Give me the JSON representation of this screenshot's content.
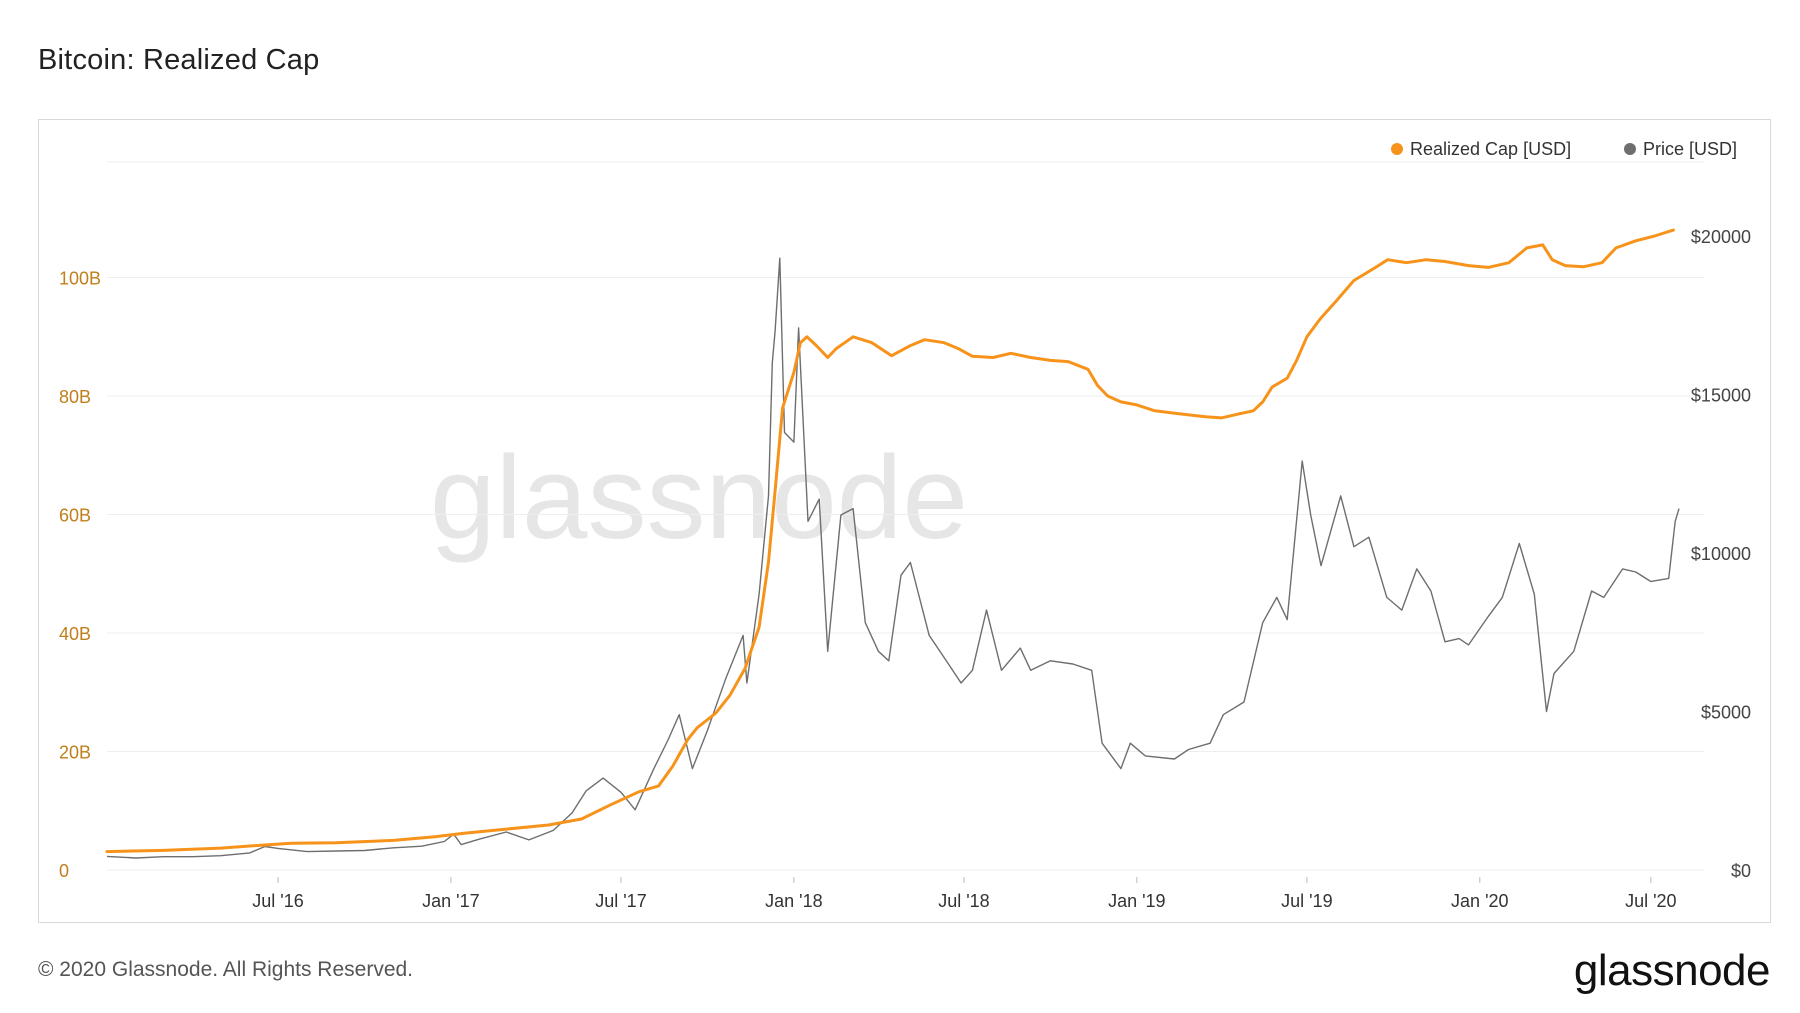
{
  "title": "Bitcoin: Realized Cap",
  "footer": {
    "copyright": "© 2020 Glassnode. All Rights Reserved.",
    "logo": "glassnode"
  },
  "watermark": "glassnode",
  "colors": {
    "realized_cap": "#f7931a",
    "price": "#6e6e6e",
    "left_axis_text": "#c07f1b",
    "grid": "#eeeeee"
  },
  "chart_data": {
    "type": "line",
    "title": "Bitcoin: Realized Cap",
    "legend": {
      "placement": "top-right",
      "entries": [
        "Realized Cap [USD]",
        "Price [USD]"
      ]
    },
    "grid": true,
    "x_range": [
      "2016-01-01",
      "2020-07-31"
    ],
    "x_ticks": [
      {
        "date": "2016-07-01",
        "label": "Jul '16"
      },
      {
        "date": "2017-01-01",
        "label": "Jan '17"
      },
      {
        "date": "2017-07-01",
        "label": "Jul '17"
      },
      {
        "date": "2018-01-01",
        "label": "Jan '18"
      },
      {
        "date": "2018-07-01",
        "label": "Jul '18"
      },
      {
        "date": "2019-01-01",
        "label": "Jan '19"
      },
      {
        "date": "2019-07-01",
        "label": "Jul '19"
      },
      {
        "date": "2020-01-01",
        "label": "Jan '20"
      },
      {
        "date": "2020-07-01",
        "label": "Jul '20"
      }
    ],
    "y_left": {
      "range": [
        0,
        120
      ],
      "ticks": [
        {
          "value": 0,
          "label": "0"
        },
        {
          "value": 20,
          "label": "20B"
        },
        {
          "value": 40,
          "label": "40B"
        },
        {
          "value": 60,
          "label": "60B"
        },
        {
          "value": 80,
          "label": "80B"
        },
        {
          "value": 100,
          "label": "100B"
        }
      ]
    },
    "y_right": {
      "range": [
        0,
        22000
      ],
      "ticks": [
        {
          "value": 0,
          "label": "$0"
        },
        {
          "value": 5000,
          "label": "$5000"
        },
        {
          "value": 10000,
          "label": "$10000"
        },
        {
          "value": 15000,
          "label": "$15000"
        },
        {
          "value": 20000,
          "label": "$20000"
        }
      ]
    },
    "series": [
      {
        "name": "Realized Cap [USD]",
        "axis": "left",
        "points": [
          [
            "2016-01-01",
            3.1
          ],
          [
            "2016-03-01",
            3.3
          ],
          [
            "2016-05-01",
            3.7
          ],
          [
            "2016-06-15",
            4.2
          ],
          [
            "2016-07-15",
            4.5
          ],
          [
            "2016-09-01",
            4.6
          ],
          [
            "2016-11-01",
            5.0
          ],
          [
            "2016-12-15",
            5.6
          ],
          [
            "2017-01-15",
            6.2
          ],
          [
            "2017-03-01",
            6.9
          ],
          [
            "2017-04-15",
            7.6
          ],
          [
            "2017-05-20",
            8.6
          ],
          [
            "2017-06-20",
            11.0
          ],
          [
            "2017-07-20",
            13.2
          ],
          [
            "2017-08-10",
            14.2
          ],
          [
            "2017-08-25",
            17.5
          ],
          [
            "2017-09-10",
            22.0
          ],
          [
            "2017-09-20",
            24.0
          ],
          [
            "2017-10-10",
            26.5
          ],
          [
            "2017-10-25",
            29.5
          ],
          [
            "2017-11-10",
            34.0
          ],
          [
            "2017-11-25",
            41.0
          ],
          [
            "2017-12-05",
            52.0
          ],
          [
            "2017-12-12",
            64.0
          ],
          [
            "2017-12-20",
            78.0
          ],
          [
            "2018-01-01",
            84.0
          ],
          [
            "2018-01-08",
            89.0
          ],
          [
            "2018-01-15",
            90.0
          ],
          [
            "2018-01-25",
            88.5
          ],
          [
            "2018-02-06",
            86.5
          ],
          [
            "2018-02-15",
            88.0
          ],
          [
            "2018-03-05",
            90.0
          ],
          [
            "2018-03-25",
            89.0
          ],
          [
            "2018-04-15",
            86.8
          ],
          [
            "2018-05-05",
            88.5
          ],
          [
            "2018-05-20",
            89.5
          ],
          [
            "2018-06-10",
            89.0
          ],
          [
            "2018-06-25",
            88.0
          ],
          [
            "2018-07-10",
            86.7
          ],
          [
            "2018-08-01",
            86.5
          ],
          [
            "2018-08-20",
            87.2
          ],
          [
            "2018-09-10",
            86.5
          ],
          [
            "2018-10-01",
            86.0
          ],
          [
            "2018-10-20",
            85.8
          ],
          [
            "2018-11-10",
            84.5
          ],
          [
            "2018-11-20",
            81.8
          ],
          [
            "2018-12-01",
            80.0
          ],
          [
            "2018-12-15",
            79.0
          ],
          [
            "2019-01-01",
            78.5
          ],
          [
            "2019-01-20",
            77.5
          ],
          [
            "2019-02-15",
            77.0
          ],
          [
            "2019-03-15",
            76.5
          ],
          [
            "2019-04-01",
            76.3
          ],
          [
            "2019-04-20",
            77.0
          ],
          [
            "2019-05-05",
            77.5
          ],
          [
            "2019-05-15",
            79.0
          ],
          [
            "2019-05-25",
            81.5
          ],
          [
            "2019-06-10",
            83.0
          ],
          [
            "2019-06-20",
            86.0
          ],
          [
            "2019-07-01",
            90.0
          ],
          [
            "2019-07-15",
            93.0
          ],
          [
            "2019-08-01",
            96.0
          ],
          [
            "2019-08-20",
            99.5
          ],
          [
            "2019-09-10",
            101.5
          ],
          [
            "2019-09-25",
            103.0
          ],
          [
            "2019-10-15",
            102.5
          ],
          [
            "2019-11-05",
            103.0
          ],
          [
            "2019-11-25",
            102.7
          ],
          [
            "2019-12-20",
            102.0
          ],
          [
            "2020-01-10",
            101.7
          ],
          [
            "2020-02-01",
            102.5
          ],
          [
            "2020-02-20",
            105.0
          ],
          [
            "2020-03-08",
            105.5
          ],
          [
            "2020-03-18",
            103.0
          ],
          [
            "2020-04-01",
            102.0
          ],
          [
            "2020-04-20",
            101.8
          ],
          [
            "2020-05-10",
            102.5
          ],
          [
            "2020-05-25",
            105.0
          ],
          [
            "2020-06-15",
            106.2
          ],
          [
            "2020-07-05",
            107.0
          ],
          [
            "2020-07-25",
            108.0
          ]
        ]
      },
      {
        "name": "Price [USD]",
        "axis": "right",
        "points": [
          [
            "2016-01-01",
            430
          ],
          [
            "2016-02-01",
            380
          ],
          [
            "2016-03-01",
            420
          ],
          [
            "2016-04-01",
            420
          ],
          [
            "2016-05-01",
            450
          ],
          [
            "2016-06-01",
            540
          ],
          [
            "2016-06-17",
            740
          ],
          [
            "2016-07-01",
            680
          ],
          [
            "2016-08-01",
            580
          ],
          [
            "2016-09-01",
            600
          ],
          [
            "2016-10-01",
            615
          ],
          [
            "2016-11-01",
            700
          ],
          [
            "2016-12-01",
            750
          ],
          [
            "2016-12-25",
            900
          ],
          [
            "2017-01-04",
            1130
          ],
          [
            "2017-01-12",
            800
          ],
          [
            "2017-02-01",
            980
          ],
          [
            "2017-03-01",
            1200
          ],
          [
            "2017-03-25",
            950
          ],
          [
            "2017-04-20",
            1250
          ],
          [
            "2017-05-10",
            1800
          ],
          [
            "2017-05-25",
            2500
          ],
          [
            "2017-06-12",
            2900
          ],
          [
            "2017-07-01",
            2450
          ],
          [
            "2017-07-16",
            1900
          ],
          [
            "2017-08-05",
            3200
          ],
          [
            "2017-08-20",
            4100
          ],
          [
            "2017-09-01",
            4900
          ],
          [
            "2017-09-15",
            3200
          ],
          [
            "2017-10-01",
            4400
          ],
          [
            "2017-10-20",
            6000
          ],
          [
            "2017-11-08",
            7400
          ],
          [
            "2017-11-12",
            5900
          ],
          [
            "2017-11-25",
            8700
          ],
          [
            "2017-12-05",
            11800
          ],
          [
            "2017-12-09",
            16000
          ],
          [
            "2017-12-12",
            17000
          ],
          [
            "2017-12-17",
            19300
          ],
          [
            "2017-12-22",
            13800
          ],
          [
            "2018-01-01",
            13500
          ],
          [
            "2018-01-06",
            17100
          ],
          [
            "2018-01-16",
            11000
          ],
          [
            "2018-01-28",
            11700
          ],
          [
            "2018-02-06",
            6900
          ],
          [
            "2018-02-20",
            11200
          ],
          [
            "2018-03-05",
            11400
          ],
          [
            "2018-03-18",
            7800
          ],
          [
            "2018-04-01",
            6900
          ],
          [
            "2018-04-12",
            6600
          ],
          [
            "2018-04-25",
            9300
          ],
          [
            "2018-05-05",
            9700
          ],
          [
            "2018-05-25",
            7400
          ],
          [
            "2018-06-10",
            6700
          ],
          [
            "2018-06-28",
            5900
          ],
          [
            "2018-07-10",
            6300
          ],
          [
            "2018-07-25",
            8200
          ],
          [
            "2018-08-10",
            6300
          ],
          [
            "2018-08-30",
            7000
          ],
          [
            "2018-09-10",
            6300
          ],
          [
            "2018-10-01",
            6600
          ],
          [
            "2018-10-25",
            6500
          ],
          [
            "2018-11-14",
            6300
          ],
          [
            "2018-11-25",
            4000
          ],
          [
            "2018-12-15",
            3200
          ],
          [
            "2018-12-25",
            4000
          ],
          [
            "2019-01-10",
            3600
          ],
          [
            "2019-02-10",
            3500
          ],
          [
            "2019-02-25",
            3800
          ],
          [
            "2019-03-20",
            4000
          ],
          [
            "2019-04-03",
            4900
          ],
          [
            "2019-04-25",
            5300
          ],
          [
            "2019-05-15",
            7800
          ],
          [
            "2019-05-30",
            8600
          ],
          [
            "2019-06-10",
            7900
          ],
          [
            "2019-06-26",
            12900
          ],
          [
            "2019-07-05",
            11200
          ],
          [
            "2019-07-16",
            9600
          ],
          [
            "2019-08-06",
            11800
          ],
          [
            "2019-08-20",
            10200
          ],
          [
            "2019-09-05",
            10500
          ],
          [
            "2019-09-24",
            8600
          ],
          [
            "2019-10-10",
            8200
          ],
          [
            "2019-10-26",
            9500
          ],
          [
            "2019-11-10",
            8800
          ],
          [
            "2019-11-25",
            7200
          ],
          [
            "2019-12-10",
            7300
          ],
          [
            "2019-12-20",
            7100
          ],
          [
            "2020-01-10",
            8000
          ],
          [
            "2020-01-25",
            8600
          ],
          [
            "2020-02-12",
            10300
          ],
          [
            "2020-02-28",
            8700
          ],
          [
            "2020-03-12",
            5000
          ],
          [
            "2020-03-20",
            6200
          ],
          [
            "2020-04-10",
            6900
          ],
          [
            "2020-04-29",
            8800
          ],
          [
            "2020-05-12",
            8600
          ],
          [
            "2020-06-01",
            9500
          ],
          [
            "2020-06-15",
            9400
          ],
          [
            "2020-07-01",
            9100
          ],
          [
            "2020-07-20",
            9200
          ],
          [
            "2020-07-27",
            11000
          ],
          [
            "2020-07-31",
            11400
          ]
        ]
      }
    ]
  }
}
